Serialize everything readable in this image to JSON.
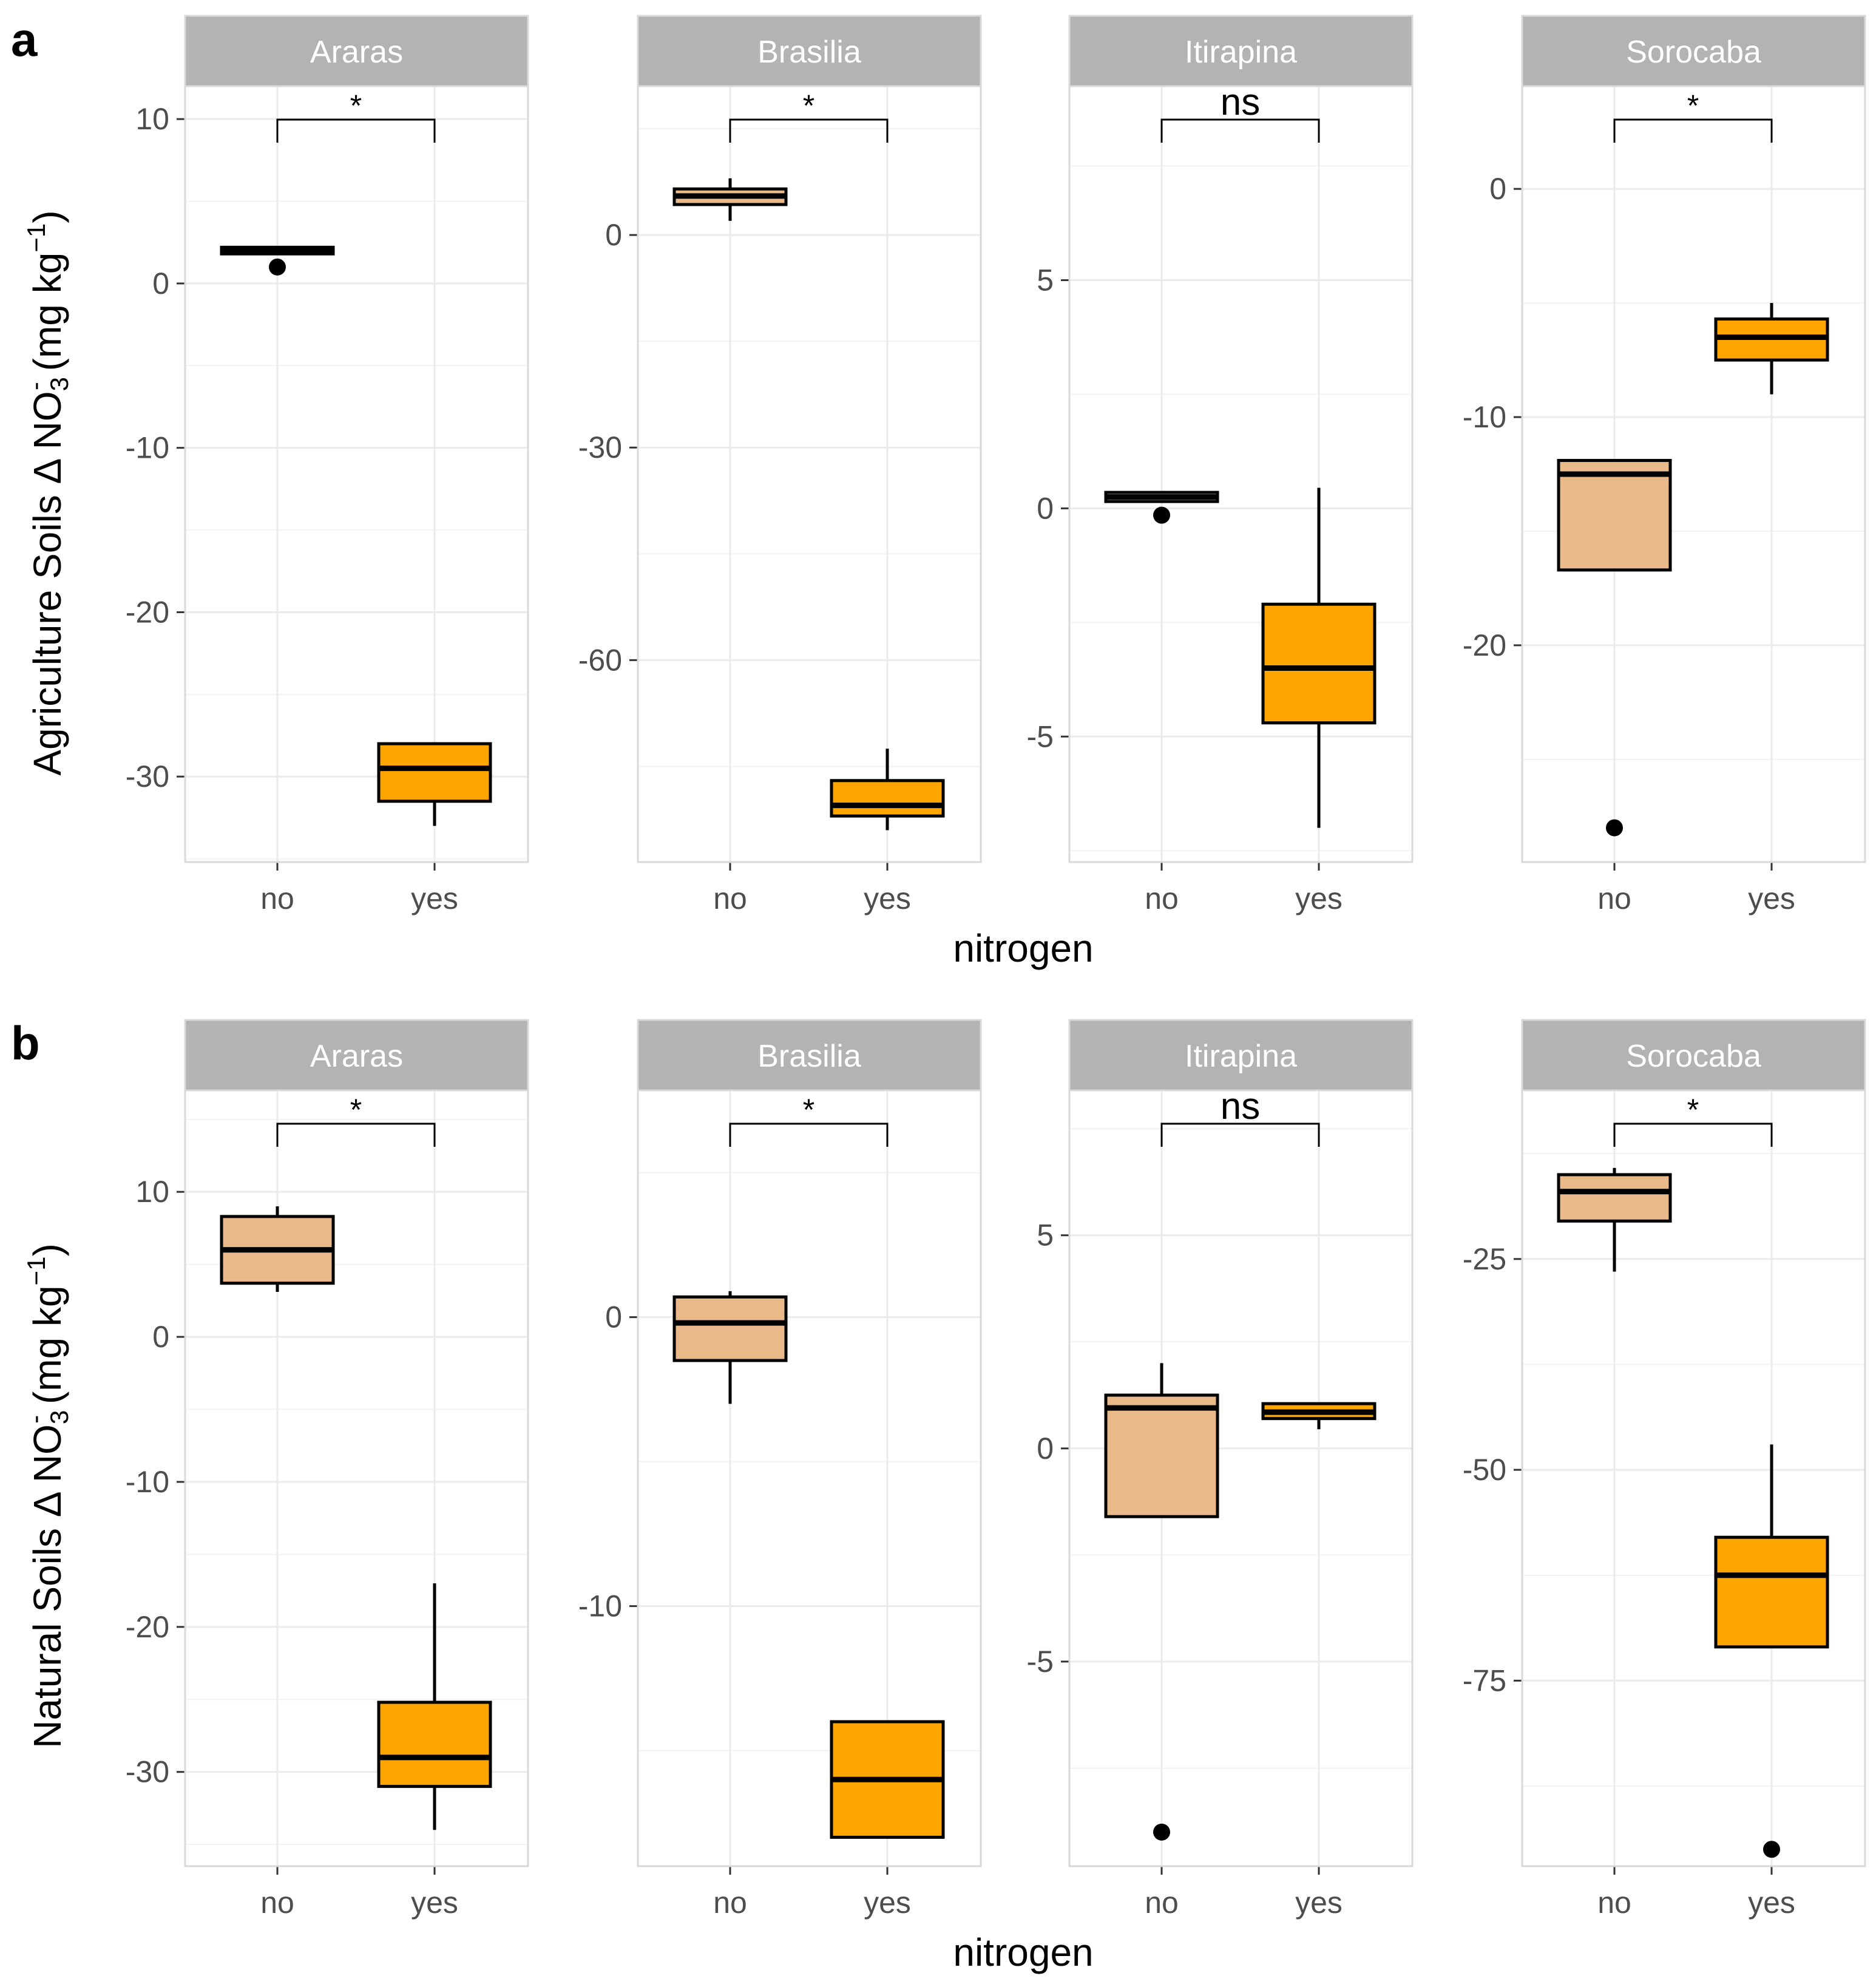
{
  "figure": {
    "xlabel": "nitrogen",
    "colors": {
      "no_fill": "#eab98a",
      "yes_fill": "#ffa500",
      "strip_fill": "#b3b3b3",
      "strip_text": "#ffffff",
      "grid": "#ebebeb",
      "frame": "#d9d9d9",
      "box_line": "#000000"
    }
  },
  "rows": [
    {
      "letter": "a",
      "ylabel": {
        "prefix": "Agriculture Soils Δ NO",
        "sub": "3",
        "sup_minus": "-",
        "units_open": " (mg kg",
        "units_sup": "−1",
        "units_close": ")"
      }
    },
    {
      "letter": "b",
      "ylabel": {
        "prefix": "Natural Soils Δ NO",
        "sub": "3",
        "sup_minus": "-",
        "units_open": " (mg kg",
        "units_sup": "−1",
        "units_close": ")"
      }
    }
  ],
  "chart_data": [
    {
      "type": "box",
      "row": "a",
      "title": "Araras",
      "xlabel": "nitrogen",
      "ylabel": "Agriculture Soils Δ NO3- (mg kg-1)",
      "ylim": [
        -35.2,
        12.0
      ],
      "yticks": [
        10,
        0,
        -10,
        -20,
        -30
      ],
      "categories": [
        "no",
        "yes"
      ],
      "boxes": [
        {
          "group": "no",
          "whisker_low": 1.8,
          "q1": 1.8,
          "median": 2.0,
          "q3": 2.2,
          "whisker_high": 2.2,
          "outliers": [
            1.0
          ]
        },
        {
          "group": "yes",
          "whisker_low": -33.0,
          "q1": -31.5,
          "median": -29.5,
          "q3": -28.0,
          "whisker_high": -28.0,
          "outliers": []
        }
      ],
      "significance": "*"
    },
    {
      "type": "box",
      "row": "a",
      "title": "Brasilia",
      "xlabel": "nitrogen",
      "ylabel": "Agriculture Soils Δ NO3- (mg kg-1)",
      "ylim": [
        -88.5,
        21.0
      ],
      "yticks": [
        0,
        -30,
        -60
      ],
      "categories": [
        "no",
        "yes"
      ],
      "boxes": [
        {
          "group": "no",
          "whisker_low": 2.0,
          "q1": 4.3,
          "median": 5.5,
          "q3": 6.5,
          "whisker_high": 8.0,
          "outliers": []
        },
        {
          "group": "yes",
          "whisker_low": -84.0,
          "q1": -82.0,
          "median": -80.5,
          "q3": -77.0,
          "whisker_high": -72.5,
          "outliers": []
        }
      ],
      "significance": "*"
    },
    {
      "type": "box",
      "row": "a",
      "title": "Itirapina",
      "xlabel": "nitrogen",
      "ylabel": "Agriculture Soils Δ NO3- (mg kg-1)",
      "ylim": [
        -7.75,
        9.25
      ],
      "yticks": [
        5,
        0,
        -5
      ],
      "categories": [
        "no",
        "yes"
      ],
      "boxes": [
        {
          "group": "no",
          "whisker_low": 0.15,
          "q1": 0.15,
          "median": 0.25,
          "q3": 0.35,
          "whisker_high": 0.35,
          "outliers": [
            -0.15
          ]
        },
        {
          "group": "yes",
          "whisker_low": -7.0,
          "q1": -4.7,
          "median": -3.5,
          "q3": -2.1,
          "whisker_high": 0.45,
          "outliers": []
        }
      ],
      "significance": "ns"
    },
    {
      "type": "box",
      "row": "a",
      "title": "Sorocaba",
      "xlabel": "nitrogen",
      "ylabel": "Agriculture Soils Δ NO3- (mg kg-1)",
      "ylim": [
        -29.5,
        4.5
      ],
      "yticks": [
        0,
        -10,
        -20
      ],
      "categories": [
        "no",
        "yes"
      ],
      "boxes": [
        {
          "group": "no",
          "whisker_low": -16.7,
          "q1": -16.7,
          "median": -12.5,
          "q3": -11.9,
          "whisker_high": -11.9,
          "outliers": [
            -28.0
          ]
        },
        {
          "group": "yes",
          "whisker_low": -9.0,
          "q1": -7.5,
          "median": -6.5,
          "q3": -5.7,
          "whisker_high": -5.0,
          "outliers": []
        }
      ],
      "significance": "*"
    },
    {
      "type": "box",
      "row": "b",
      "title": "Araras",
      "xlabel": "nitrogen",
      "ylabel": "Natural Soils Δ NO3- (mg kg-1)",
      "ylim": [
        -36.5,
        17.0
      ],
      "yticks": [
        10,
        0,
        -10,
        -20,
        -30
      ],
      "categories": [
        "no",
        "yes"
      ],
      "boxes": [
        {
          "group": "no",
          "whisker_low": 3.1,
          "q1": 3.7,
          "median": 6.0,
          "q3": 8.3,
          "whisker_high": 9.0,
          "outliers": []
        },
        {
          "group": "yes",
          "whisker_low": -34.0,
          "q1": -31.0,
          "median": -29.0,
          "q3": -25.2,
          "whisker_high": -17.0,
          "outliers": []
        }
      ],
      "significance": "*"
    },
    {
      "type": "box",
      "row": "b",
      "title": "Brasilia",
      "xlabel": "nitrogen",
      "ylabel": "Natural Soils Δ NO3- (mg kg-1)",
      "ylim": [
        -19.0,
        7.85
      ],
      "yticks": [
        0,
        -10
      ],
      "categories": [
        "no",
        "yes"
      ],
      "boxes": [
        {
          "group": "no",
          "whisker_low": -3.0,
          "q1": -1.5,
          "median": -0.2,
          "q3": 0.7,
          "whisker_high": 0.9,
          "outliers": []
        },
        {
          "group": "yes",
          "whisker_low": -18.0,
          "q1": -18.0,
          "median": -16.0,
          "q3": -14.0,
          "whisker_high": -14.0,
          "outliers": []
        }
      ],
      "significance": "*"
    },
    {
      "type": "box",
      "row": "b",
      "title": "Itirapina",
      "xlabel": "nitrogen",
      "ylabel": "Natural Soils Δ NO3- (mg kg-1)",
      "ylim": [
        -9.8,
        8.4
      ],
      "yticks": [
        5,
        0,
        -5
      ],
      "categories": [
        "no",
        "yes"
      ],
      "boxes": [
        {
          "group": "no",
          "whisker_low": -1.6,
          "q1": -1.6,
          "median": 0.95,
          "q3": 1.25,
          "whisker_high": 2.0,
          "outliers": [
            -9.0
          ]
        },
        {
          "group": "yes",
          "whisker_low": 0.45,
          "q1": 0.7,
          "median": 0.85,
          "q3": 1.05,
          "whisker_high": 1.05,
          "outliers": []
        }
      ],
      "significance": "ns"
    },
    {
      "type": "box",
      "row": "b",
      "title": "Sorocaba",
      "xlabel": "nitrogen",
      "ylabel": "Natural Soils Δ NO3- (mg kg-1)",
      "ylim": [
        -97.0,
        -5.0
      ],
      "yticks": [
        -25,
        -50,
        -75
      ],
      "categories": [
        "no",
        "yes"
      ],
      "boxes": [
        {
          "group": "no",
          "whisker_low": -26.5,
          "q1": -20.5,
          "median": -17.0,
          "q3": -15.0,
          "whisker_high": -14.2,
          "outliers": []
        },
        {
          "group": "yes",
          "whisker_low": -71.0,
          "q1": -71.0,
          "median": -62.5,
          "q3": -58.0,
          "whisker_high": -47.0,
          "outliers": [
            -95.0
          ]
        }
      ],
      "significance": "*"
    }
  ]
}
